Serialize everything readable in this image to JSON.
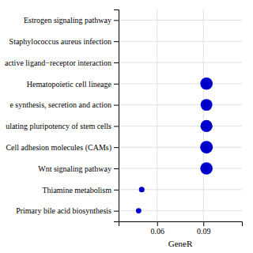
{
  "chart_data": {
    "type": "scatter",
    "orientation": "horizontal",
    "categories": [
      "Estrogen signaling pathway",
      "Staphylococcus aureus infection",
      "active ligand−receptor interaction",
      "Hematopoietic cell lineage",
      "e synthesis, secretion and action",
      "ulating pluripotency of stem cells",
      "Cell adhesion molecules (CAMs)",
      "Wnt signaling pathway",
      "Thiamine metabolism",
      "Primary bile acid biosynthesis"
    ],
    "values": [
      null,
      null,
      null,
      0.092,
      0.092,
      0.092,
      0.092,
      0.092,
      0.05,
      0.048
    ],
    "sizes": [
      null,
      null,
      null,
      220,
      200,
      210,
      230,
      220,
      45,
      42
    ],
    "color": "#0000cc",
    "xlabel": "GeneR",
    "xlim": [
      0.035,
      0.115
    ],
    "xticks": [
      0.06,
      0.09
    ],
    "grid": true
  }
}
